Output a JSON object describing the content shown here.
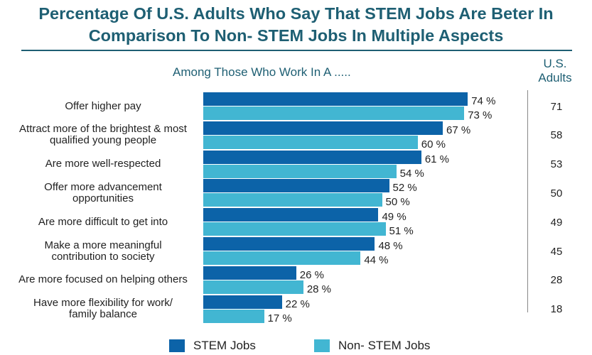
{
  "chart_data": {
    "type": "bar",
    "orientation": "horizontal",
    "title": "Percentage Of U.S. Adults Who Say That STEM Jobs Are Beter In Comparison To Non- STEM Jobs In Multiple Aspects",
    "subtitle": "Among Those Who Work In A .....",
    "column_header": "U.S. Adults",
    "categories": [
      "Offer higher pay",
      "Attract more of the brightest & most qualified young people",
      "Are more well-respected",
      "Offer more advancement opportunities",
      "Are more difficult to get into",
      "Make a more meaningful contribution to society",
      "Are more focused on helping others",
      "Have more flexibility for work/ family balance"
    ],
    "series": [
      {
        "name": "STEM Jobs",
        "color": "#0c63a8",
        "values": [
          74,
          67,
          61,
          52,
          49,
          48,
          26,
          22
        ]
      },
      {
        "name": "Non- STEM Jobs",
        "color": "#42b6d2",
        "values": [
          73,
          60,
          54,
          50,
          51,
          44,
          28,
          17
        ]
      }
    ],
    "us_adults": [
      71,
      58,
      53,
      50,
      49,
      45,
      28,
      18
    ],
    "value_suffix": " %",
    "xlim": [
      0,
      100
    ],
    "grid": false,
    "legend_position": "bottom"
  }
}
